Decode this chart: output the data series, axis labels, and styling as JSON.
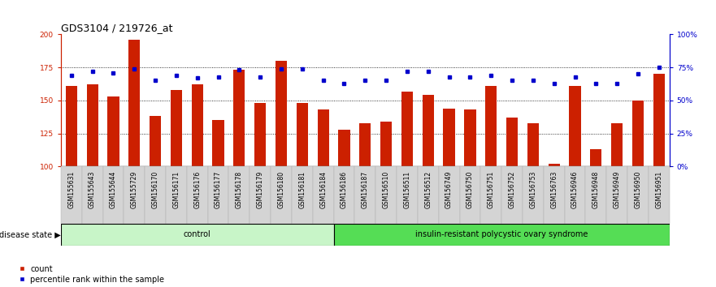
{
  "title": "GDS3104 / 219726_at",
  "samples": [
    "GSM155631",
    "GSM155643",
    "GSM155644",
    "GSM155729",
    "GSM156170",
    "GSM156171",
    "GSM156176",
    "GSM156177",
    "GSM156178",
    "GSM156179",
    "GSM156180",
    "GSM156181",
    "GSM156184",
    "GSM156186",
    "GSM156187",
    "GSM156510",
    "GSM156511",
    "GSM156512",
    "GSM156749",
    "GSM156750",
    "GSM156751",
    "GSM156752",
    "GSM156753",
    "GSM156763",
    "GSM156946",
    "GSM156948",
    "GSM156949",
    "GSM156950",
    "GSM156951"
  ],
  "counts": [
    161,
    162,
    153,
    196,
    138,
    158,
    162,
    135,
    173,
    148,
    180,
    148,
    143,
    128,
    133,
    134,
    157,
    154,
    144,
    143,
    161,
    137,
    133,
    102,
    161,
    113,
    133,
    150,
    170
  ],
  "percentile": [
    69,
    72,
    71,
    74,
    65,
    69,
    67,
    68,
    73,
    68,
    74,
    74,
    65,
    63,
    65,
    65,
    72,
    72,
    68,
    68,
    69,
    65,
    65,
    63,
    68,
    63,
    63,
    70,
    75
  ],
  "control_size": 13,
  "pcos_size": 16,
  "control_label": "control",
  "pcos_label": "insulin-resistant polycystic ovary syndrome",
  "control_color": "#c8f5c8",
  "pcos_color": "#55dd55",
  "bar_color": "#cc2000",
  "dot_color": "#0000cc",
  "ylim_left": [
    100,
    200
  ],
  "ylim_right": [
    0,
    100
  ],
  "yticks_left": [
    100,
    125,
    150,
    175,
    200
  ],
  "yticks_right": [
    0,
    25,
    50,
    75,
    100
  ],
  "ytick_right_labels": [
    "0%",
    "25%",
    "50%",
    "75%",
    "100%"
  ],
  "grid_lines": [
    125,
    150,
    175
  ],
  "title_fontsize": 9,
  "axis_fontsize": 6.5,
  "sample_fontsize": 5.5,
  "group_fontsize": 7,
  "legend_fontsize": 7,
  "disease_state_label": "disease state",
  "legend_items": [
    "count",
    "percentile rank within the sample"
  ],
  "tick_bg_color": "#d4d4d4",
  "tick_bg_edge": "#aaaaaa"
}
